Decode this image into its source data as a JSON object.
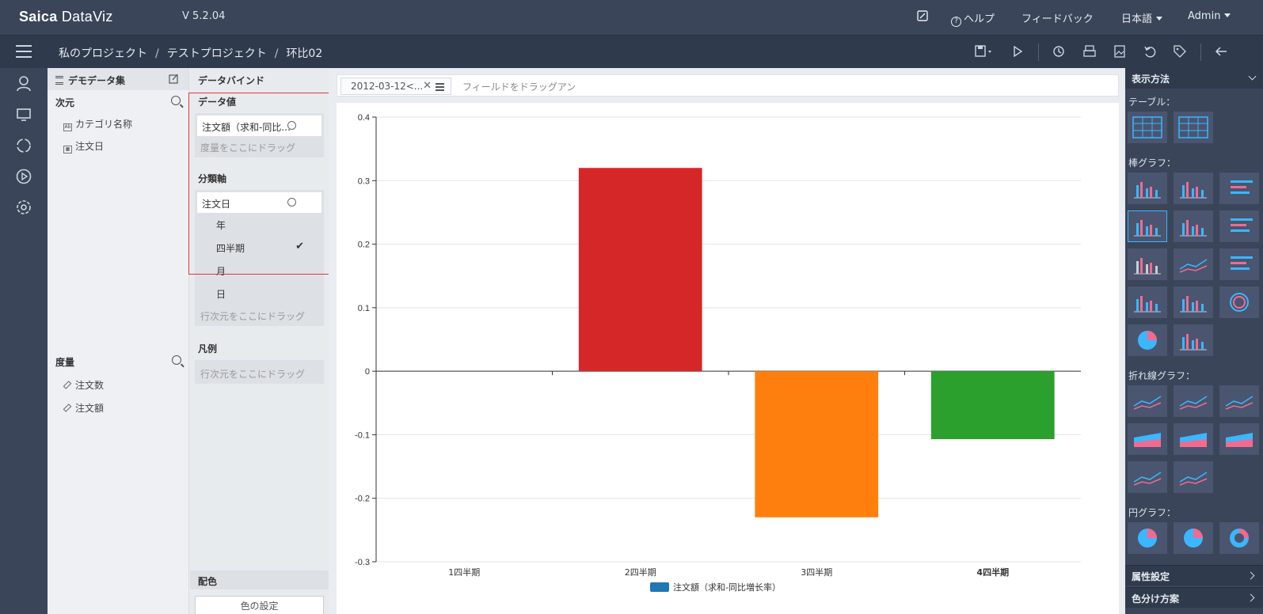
{
  "topbar": {
    "logo_bold": "Saica",
    "logo_light": "DataViz",
    "version": "V 5.2.04",
    "edit_icon": "external-edit-icon",
    "help": "ヘルプ",
    "feedback": "フィードバック",
    "language": "日本語",
    "user": "Admin"
  },
  "breadcrumb": {
    "items": [
      "私のプロジェクト",
      "テストプロジェクト",
      "环比02"
    ],
    "separator": "/"
  },
  "toolbar_icons": [
    "save-icon",
    "run-icon",
    "refresh-icon",
    "print-icon",
    "image-icon",
    "undo-icon",
    "tag-icon",
    "back-arrow-icon"
  ],
  "left_nav_icons": [
    "user-icon",
    "monitor-icon",
    "refresh-cycle-icon",
    "play-icon",
    "settings-icon"
  ],
  "dataset": {
    "title": "デモデータ集",
    "dimension_header": "次元",
    "dimensions": [
      "カテゴリ名称",
      "注文日"
    ],
    "measure_header": "度量",
    "measures": [
      "注文数",
      "注文額"
    ]
  },
  "binding": {
    "title": "データバインド",
    "data_value_label": "データ値",
    "data_value_field": "注文額（求和-同比...",
    "measure_drop_hint": "度量をここにドラッグ",
    "category_label": "分類軸",
    "category_field": "注文日",
    "granularities": [
      {
        "label": "年",
        "checked": false
      },
      {
        "label": "四半期",
        "checked": true
      },
      {
        "label": "月",
        "checked": false
      },
      {
        "label": "日",
        "checked": false
      }
    ],
    "row_drop_hint": "行次元をここにドラッグ",
    "legend_label": "凡例",
    "legend_drop_hint": "行次元をここにドラッグ",
    "color_label": "配色",
    "color_button": "色の設定"
  },
  "filter": {
    "tab_label": "2012-03-12<...",
    "hint": "フィールドをドラッグアン"
  },
  "chart_data": {
    "type": "bar",
    "categories": [
      "1四半期",
      "2四半期",
      "3四半期",
      "4四半期"
    ],
    "values": [
      null,
      0.32,
      -0.23,
      -0.107
    ],
    "colors": [
      "#1f77b4",
      "#d62728",
      "#ff7f0e",
      "#2ca02c"
    ],
    "ylim": [
      -0.3,
      0.4
    ],
    "yticks": [
      -0.3,
      -0.2,
      -0.1,
      0,
      0.1,
      0.2,
      0.3,
      0.4
    ],
    "ytick_labels": [
      "-0.3",
      "-0.2",
      "-0.1",
      "0",
      "0.1",
      "0.2",
      "0.3",
      "0.4"
    ],
    "legend": "注文額（求和-同比増长率）",
    "legend_color": "#1f77b4",
    "grid": true,
    "legend_position": "bottom-center",
    "bold_category": "4四半期"
  },
  "right_panel": {
    "title": "表示方法",
    "sections": [
      {
        "label": "テーブル：",
        "rows": [
          [
            "table-chart-icon",
            "pivot-table-icon"
          ]
        ]
      },
      {
        "label": "棒グラフ：",
        "rows": [
          [
            "bar-chart-icon",
            "bar-chart-grouped-icon",
            "horizontal-bar-icon"
          ],
          [
            "bar-chart-selected-icon",
            "bar-chart-stacked-icon",
            "horizontal-bar-stacked-icon"
          ],
          [
            "bar-chart-gray-icon",
            "bar-chart-line-icon",
            "horizontal-bar-centered-icon"
          ],
          [
            "bar-3d-icon",
            "bar-rounded-icon",
            "radial-bar-icon"
          ],
          [
            "pie-gauge-icon",
            "waterfall-icon"
          ]
        ]
      },
      {
        "label": "折れ線グラフ：",
        "rows": [
          [
            "line-chart-icon",
            "line-chart-multi-icon",
            "line-chart-step-icon"
          ],
          [
            "area-chart-icon",
            "area-chart-stacked-icon",
            "area-chart-step-icon"
          ],
          [
            "line-cross-icon",
            "line-dots-icon"
          ]
        ]
      },
      {
        "label": "円グラフ：",
        "rows": [
          [
            "pie-chart-icon",
            "pie-chart-split-icon",
            "donut-chart-icon"
          ]
        ]
      }
    ],
    "active_thumb": "bar-chart-selected-icon",
    "property_settings": "属性設定",
    "color_scheme": "色分け方案"
  }
}
